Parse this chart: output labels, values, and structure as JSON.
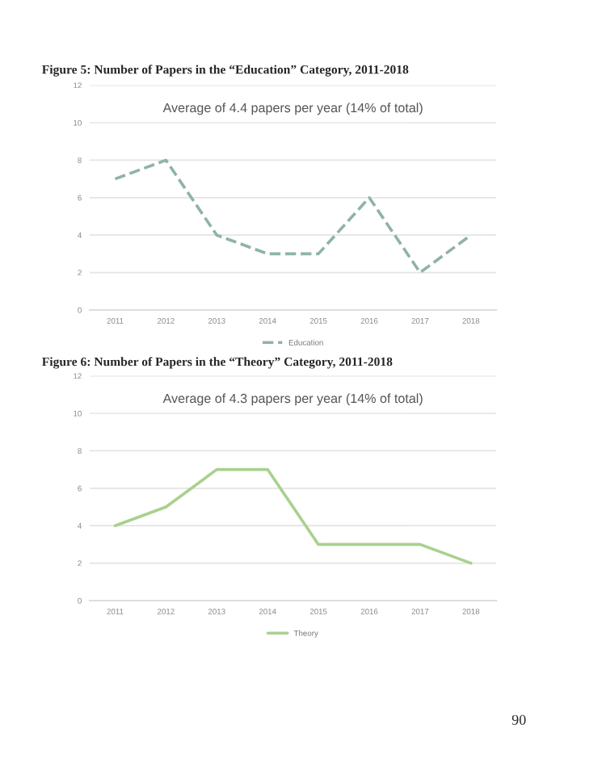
{
  "chart_data": [
    {
      "type": "line",
      "title": "Figure 5: Number of Papers in the “Education” Category, 2011-2018",
      "subtitle": "Average of 4.4 papers per year (14% of total)",
      "categories": [
        "2011",
        "2012",
        "2013",
        "2014",
        "2015",
        "2016",
        "2017",
        "2018"
      ],
      "series": [
        {
          "name": "Education",
          "color": "#8fb3aa",
          "values": [
            7,
            8,
            4,
            3,
            3,
            6,
            2,
            4
          ]
        }
      ],
      "ylim": [
        0,
        12
      ],
      "yticks": [
        0,
        2,
        4,
        6,
        8,
        10,
        12
      ],
      "grid": "y",
      "legend": "bottom",
      "line_style": "dashed",
      "marker": "none"
    },
    {
      "type": "line",
      "title": "Figure 6: Number of Papers in the “Theory” Category, 2011-2018",
      "subtitle": "Average of 4.3 papers per year (14% of total)",
      "categories": [
        "2011",
        "2012",
        "2013",
        "2014",
        "2015",
        "2016",
        "2017",
        "2018"
      ],
      "series": [
        {
          "name": "Theory",
          "color": "#a9d18e",
          "values": [
            4,
            5,
            7,
            7,
            3,
            3,
            3,
            2
          ]
        }
      ],
      "ylim": [
        0,
        12
      ],
      "yticks": [
        0,
        2,
        4,
        6,
        8,
        10,
        12
      ],
      "grid": "y",
      "legend": "bottom",
      "line_style": "solid",
      "marker": "none",
      "annotations": [
        "90"
      ]
    }
  ]
}
